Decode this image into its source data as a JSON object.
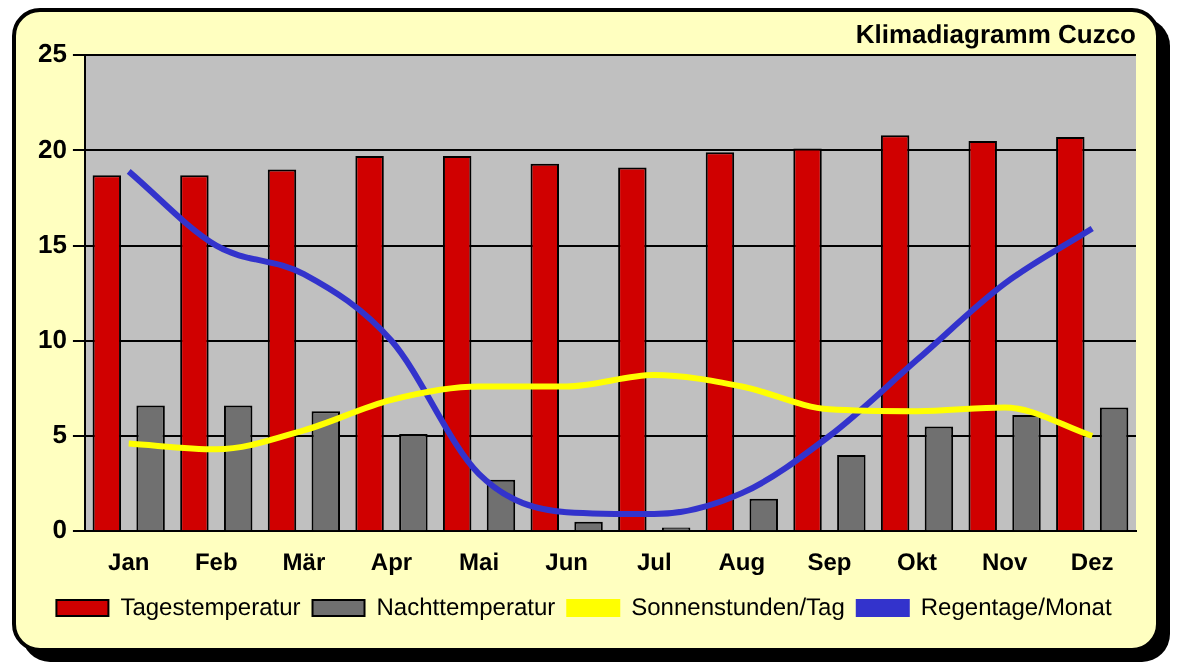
{
  "chart_data": {
    "type": "bar",
    "title": "Klimadiagramm Cuzco",
    "categories": [
      "Jan",
      "Feb",
      "Mär",
      "Apr",
      "Mai",
      "Jun",
      "Jul",
      "Aug",
      "Sep",
      "Okt",
      "Nov",
      "Dez"
    ],
    "series": [
      {
        "name": "Tagestemperatur",
        "color": "#d00000",
        "values": [
          18.7,
          18.7,
          19.0,
          19.7,
          19.7,
          19.3,
          19.1,
          19.9,
          20.1,
          20.8,
          20.5,
          20.7
        ]
      },
      {
        "name": "Nachttemperatur",
        "color": "#707070",
        "values": [
          6.6,
          6.6,
          6.3,
          5.1,
          2.7,
          0.5,
          0.2,
          1.7,
          4.0,
          5.5,
          6.1,
          6.5
        ]
      },
      {
        "name": "Sonnenstunden/Tag",
        "type": "line",
        "color": "#ffff00",
        "values": [
          4.6,
          4.3,
          5.3,
          6.9,
          7.6,
          7.6,
          8.2,
          7.6,
          6.4,
          6.3,
          6.5,
          5.0
        ]
      },
      {
        "name": "Regentage/Monat",
        "type": "line",
        "color": "#3333cc",
        "values": [
          18.9,
          15.0,
          13.5,
          10.0,
          3.0,
          1.0,
          0.9,
          2.0,
          5.0,
          9.0,
          13.0,
          15.9
        ]
      }
    ],
    "ylim": [
      0,
      25
    ],
    "yticks": [
      0,
      5,
      10,
      15,
      20,
      25
    ],
    "grid": "y",
    "legend": "bottom",
    "marker": "none"
  }
}
